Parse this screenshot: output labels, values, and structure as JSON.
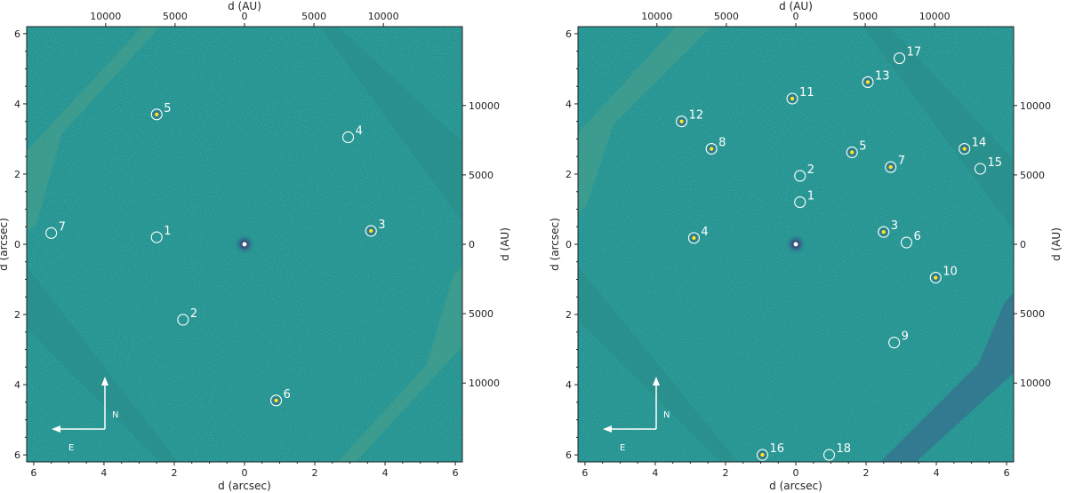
{
  "colors": {
    "background": "#21908d",
    "marker": "#ffffff",
    "bright": "#fde725",
    "dark": "#440154",
    "frame": "#222222"
  },
  "compass": {
    "north": "N",
    "east": "E"
  },
  "panels": [
    {
      "axis_titles": {
        "bottom": "d (arcsec)",
        "left": "d (arcsec)",
        "top": "d (AU)",
        "right": "d (AU)"
      },
      "arcsec_ticks": [
        "6",
        "4",
        "2",
        "0",
        "2",
        "4",
        "6"
      ],
      "au_ticks_top": [
        "10000",
        "5000",
        "0",
        "5000",
        "10000"
      ],
      "au_ticks_right": [
        "10000",
        "5000",
        "0",
        "5000",
        "10000"
      ],
      "sources": [
        {
          "label": "1",
          "dx": 2.5,
          "dy": 0.2,
          "bright": false
        },
        {
          "label": "2",
          "dx": 1.75,
          "dy": -2.15,
          "bright": false
        },
        {
          "label": "3",
          "dx": -3.6,
          "dy": 0.38,
          "bright": true
        },
        {
          "label": "4",
          "dx": -2.95,
          "dy": 3.05,
          "bright": false
        },
        {
          "label": "5",
          "dx": 2.5,
          "dy": 3.7,
          "bright": true
        },
        {
          "label": "6",
          "dx": -0.9,
          "dy": -4.45,
          "bright": true
        },
        {
          "label": "7",
          "dx": 5.5,
          "dy": 0.32,
          "bright": false
        }
      ]
    },
    {
      "axis_titles": {
        "bottom": "d (arcsec)",
        "left": "d (arcsec)",
        "top": "d (AU)",
        "right": "d (AU)"
      },
      "arcsec_ticks": [
        "6",
        "4",
        "2",
        "0",
        "2",
        "4",
        "6"
      ],
      "au_ticks_top": [
        "10000",
        "5000",
        "0",
        "5000",
        "10000"
      ],
      "au_ticks_right": [
        "10000",
        "5000",
        "0",
        "5000",
        "10000"
      ],
      "sources": [
        {
          "label": "1",
          "dx": -0.12,
          "dy": 1.2,
          "bright": false
        },
        {
          "label": "2",
          "dx": -0.12,
          "dy": 1.95,
          "bright": false
        },
        {
          "label": "3",
          "dx": -2.5,
          "dy": 0.35,
          "bright": true
        },
        {
          "label": "4",
          "dx": 2.9,
          "dy": 0.18,
          "bright": true
        },
        {
          "label": "5",
          "dx": -1.6,
          "dy": 2.62,
          "bright": true
        },
        {
          "label": "6",
          "dx": -3.15,
          "dy": 0.05,
          "bright": false
        },
        {
          "label": "7",
          "dx": -2.7,
          "dy": 2.2,
          "bright": true
        },
        {
          "label": "8",
          "dx": 2.4,
          "dy": 2.72,
          "bright": true
        },
        {
          "label": "9",
          "dx": -2.8,
          "dy": -2.8,
          "bright": false
        },
        {
          "label": "10",
          "dx": -3.98,
          "dy": -0.95,
          "bright": true
        },
        {
          "label": "11",
          "dx": 0.1,
          "dy": 4.15,
          "bright": true
        },
        {
          "label": "12",
          "dx": 3.25,
          "dy": 3.5,
          "bright": true
        },
        {
          "label": "13",
          "dx": -2.05,
          "dy": 4.62,
          "bright": true
        },
        {
          "label": "14",
          "dx": -4.8,
          "dy": 2.72,
          "bright": true
        },
        {
          "label": "15",
          "dx": -5.25,
          "dy": 2.15,
          "bright": false
        },
        {
          "label": "16",
          "dx": 0.95,
          "dy": -6.0,
          "bright": true
        },
        {
          "label": "17",
          "dx": -2.95,
          "dy": 5.3,
          "bright": false
        },
        {
          "label": "18",
          "dx": -0.95,
          "dy": -6.0,
          "bright": false
        }
      ]
    }
  ]
}
